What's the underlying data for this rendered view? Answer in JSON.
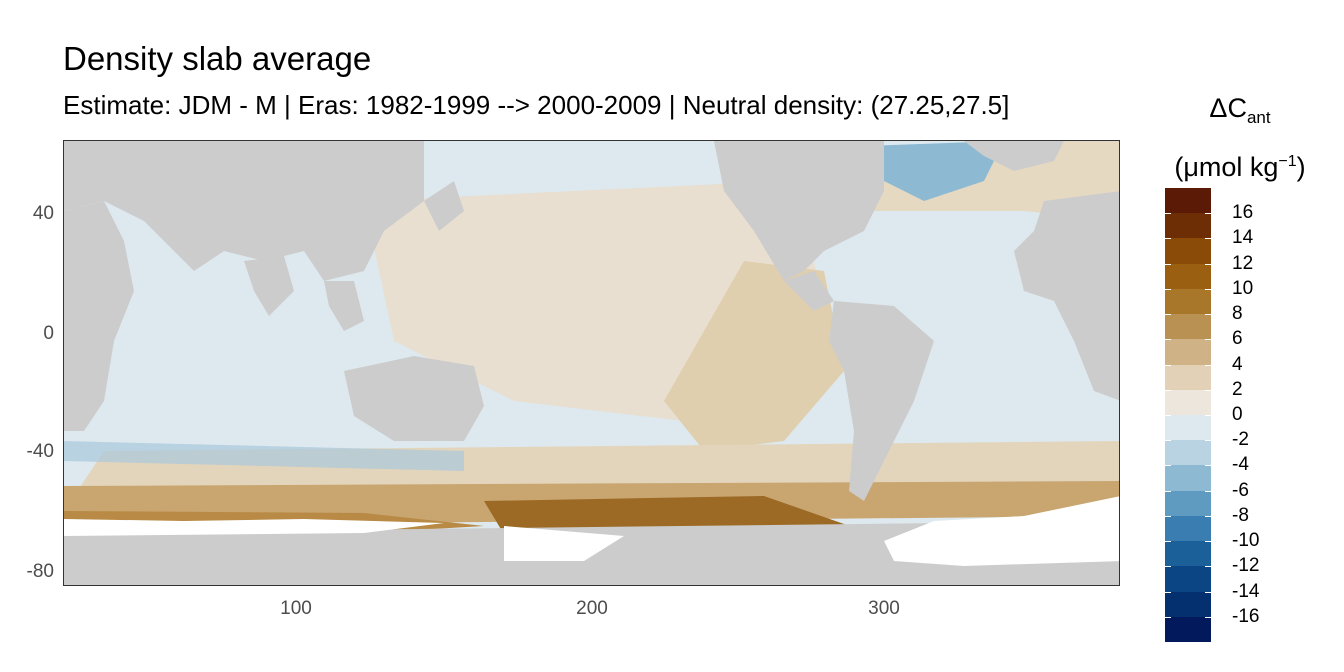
{
  "title": "Density slab average",
  "subtitle": "Estimate: JDM - M | Eras: 1982-1999 --> 2000-2009 | Neutral density: (27.25,27.5]",
  "legend": {
    "title_main": "ΔC",
    "title_sub": "ant",
    "unit_prefix": "(μmol kg",
    "unit_sup": "−1",
    "unit_suffix": ")",
    "labels": [
      "16",
      "14",
      "12",
      "10",
      "8",
      "6",
      "4",
      "2",
      "0",
      "-2",
      "-4",
      "-6",
      "-8",
      "-10",
      "-12",
      "-14",
      "-16"
    ],
    "colors": [
      "#5a1a05",
      "#6e2e05",
      "#8a4a08",
      "#9a5f10",
      "#a8772a",
      "#b99152",
      "#cfb286",
      "#e2d1b6",
      "#ece6dc",
      "#dde9ef",
      "#b9d3e2",
      "#8db9d3",
      "#5f9ac0",
      "#3a7db0",
      "#1c609a",
      "#0c4584",
      "#05306f",
      "#021a5c"
    ]
  },
  "axes": {
    "y_ticks": [
      "40",
      "0",
      "-40",
      "-80"
    ],
    "x_ticks": [
      "100",
      "200",
      "300"
    ]
  },
  "map": {
    "land_color": "#cccccc",
    "ice_color": "#ffffff",
    "ocean_base_color": "#dde9ef",
    "warm_color": "#e8dfd0",
    "x_range": [
      20,
      380
    ],
    "y_range": [
      -85,
      65
    ]
  }
}
